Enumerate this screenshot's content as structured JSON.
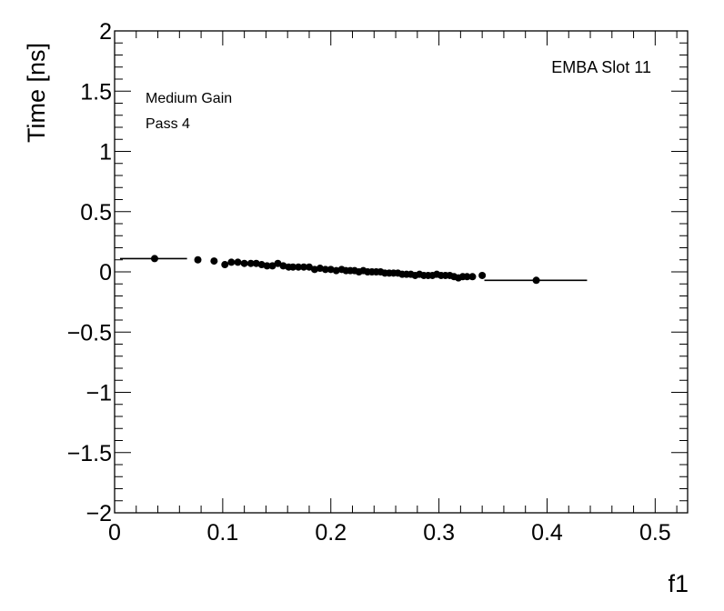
{
  "chart_data": {
    "type": "scatter",
    "title": "",
    "xlabel": "f1",
    "ylabel": "Time [ns]",
    "xlim": [
      0,
      0.53
    ],
    "ylim": [
      -2,
      2
    ],
    "grid": false,
    "x_tick_labels": [
      "0",
      "0.1",
      "0.2",
      "0.3",
      "0.4",
      "0.5"
    ],
    "x_tick_values": [
      0,
      0.1,
      0.2,
      0.3,
      0.4,
      0.5
    ],
    "y_tick_labels": [
      "−2",
      "−1.5",
      "−1",
      "−0.5",
      "0",
      "0.5",
      "1",
      "1.5",
      "2"
    ],
    "y_tick_values": [
      -2,
      -1.5,
      -1,
      -0.5,
      0,
      0.5,
      1,
      1.5,
      2
    ],
    "annotations": {
      "gain": "Medium Gain",
      "pass": "Pass 4",
      "slot": "EMBA Slot 11"
    },
    "series": [
      {
        "points": [
          {
            "x": 0.037,
            "y": 0.11,
            "xerr": [
              0.005,
              0.067
            ]
          },
          {
            "x": 0.077,
            "y": 0.1
          },
          {
            "x": 0.092,
            "y": 0.09
          },
          {
            "x": 0.102,
            "y": 0.06
          },
          {
            "x": 0.108,
            "y": 0.08
          },
          {
            "x": 0.114,
            "y": 0.08
          },
          {
            "x": 0.12,
            "y": 0.07
          },
          {
            "x": 0.126,
            "y": 0.07
          },
          {
            "x": 0.131,
            "y": 0.07
          },
          {
            "x": 0.136,
            "y": 0.06
          },
          {
            "x": 0.141,
            "y": 0.05
          },
          {
            "x": 0.146,
            "y": 0.05
          },
          {
            "x": 0.151,
            "y": 0.07
          },
          {
            "x": 0.156,
            "y": 0.05
          },
          {
            "x": 0.161,
            "y": 0.04
          },
          {
            "x": 0.165,
            "y": 0.04
          },
          {
            "x": 0.17,
            "y": 0.04
          },
          {
            "x": 0.175,
            "y": 0.04
          },
          {
            "x": 0.18,
            "y": 0.04
          },
          {
            "x": 0.185,
            "y": 0.02
          },
          {
            "x": 0.19,
            "y": 0.03
          },
          {
            "x": 0.195,
            "y": 0.02
          },
          {
            "x": 0.2,
            "y": 0.02
          },
          {
            "x": 0.205,
            "y": 0.01
          },
          {
            "x": 0.21,
            "y": 0.02
          },
          {
            "x": 0.214,
            "y": 0.01
          },
          {
            "x": 0.218,
            "y": 0.01
          },
          {
            "x": 0.222,
            "y": 0.01
          },
          {
            "x": 0.226,
            "y": 0.0
          },
          {
            "x": 0.23,
            "y": 0.01
          },
          {
            "x": 0.234,
            "y": 0.0
          },
          {
            "x": 0.238,
            "y": 0.0
          },
          {
            "x": 0.242,
            "y": 0.0
          },
          {
            "x": 0.246,
            "y": 0.0
          },
          {
            "x": 0.25,
            "y": -0.01
          },
          {
            "x": 0.254,
            "y": -0.01
          },
          {
            "x": 0.258,
            "y": -0.01
          },
          {
            "x": 0.262,
            "y": -0.01
          },
          {
            "x": 0.266,
            "y": -0.02
          },
          {
            "x": 0.27,
            "y": -0.02
          },
          {
            "x": 0.274,
            "y": -0.02
          },
          {
            "x": 0.278,
            "y": -0.03
          },
          {
            "x": 0.282,
            "y": -0.02
          },
          {
            "x": 0.286,
            "y": -0.03
          },
          {
            "x": 0.29,
            "y": -0.03
          },
          {
            "x": 0.294,
            "y": -0.03
          },
          {
            "x": 0.298,
            "y": -0.02
          },
          {
            "x": 0.302,
            "y": -0.03
          },
          {
            "x": 0.306,
            "y": -0.03
          },
          {
            "x": 0.31,
            "y": -0.03
          },
          {
            "x": 0.314,
            "y": -0.04
          },
          {
            "x": 0.318,
            "y": -0.05
          },
          {
            "x": 0.322,
            "y": -0.04
          },
          {
            "x": 0.326,
            "y": -0.04
          },
          {
            "x": 0.331,
            "y": -0.04
          },
          {
            "x": 0.34,
            "y": -0.03
          },
          {
            "x": 0.39,
            "y": -0.07,
            "xerr": [
              0.342,
              0.437
            ]
          }
        ]
      }
    ]
  }
}
